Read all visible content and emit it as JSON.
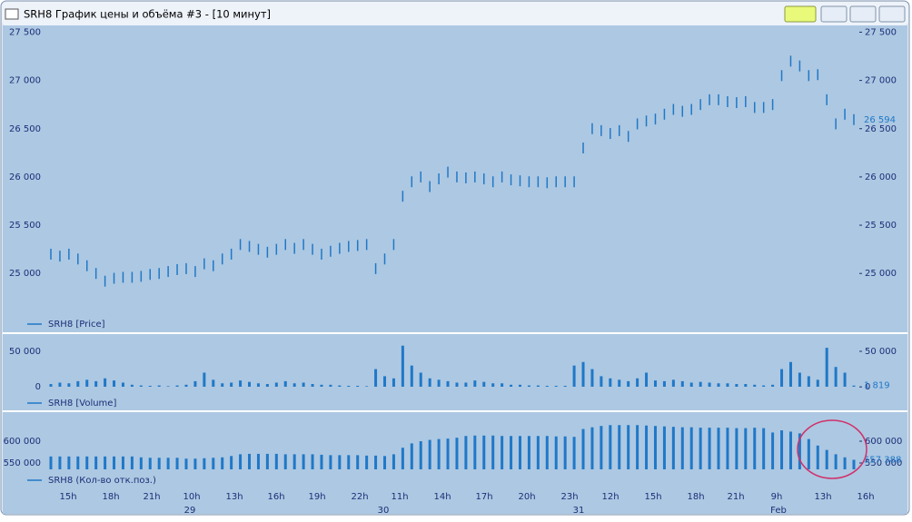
{
  "window": {
    "title": "SRH8 График цены и объёма #3 - [10 минут]"
  },
  "x_axis": {
    "time_labels": [
      "15h",
      "18h",
      "21h",
      "10h",
      "13h",
      "16h",
      "19h",
      "22h",
      "11h",
      "14h",
      "17h",
      "20h",
      "23h",
      "12h",
      "15h",
      "18h",
      "21h",
      "9h",
      "13h",
      "16h"
    ],
    "date_labels": [
      "29",
      "30",
      "31",
      "Feb"
    ]
  },
  "chart_data": [
    {
      "type": "stock",
      "title": "SRH8 [Price]",
      "color": "#1f78c8",
      "ylim": [
        24400,
        27570
      ],
      "yticks": [
        {
          "value": 25000,
          "label": "25 000"
        },
        {
          "value": 25500,
          "label": "25 500"
        },
        {
          "value": 26000,
          "label": "26 000"
        },
        {
          "value": 26500,
          "label": "26 500"
        },
        {
          "value": 27000,
          "label": "27 000"
        },
        {
          "value": 27500,
          "label": "27 500"
        }
      ],
      "values": [
        25200,
        25180,
        25200,
        25150,
        25080,
        25000,
        24920,
        24950,
        24960,
        24960,
        24970,
        24990,
        25000,
        25020,
        25040,
        25050,
        25020,
        25100,
        25080,
        25150,
        25200,
        25300,
        25280,
        25250,
        25220,
        25250,
        25300,
        25260,
        25300,
        25250,
        25200,
        25230,
        25260,
        25280,
        25290,
        25300,
        25050,
        25150,
        25300,
        25800,
        25950,
        26000,
        25900,
        25980,
        26050,
        26000,
        25990,
        26000,
        25980,
        25950,
        26000,
        25970,
        25960,
        25950,
        25950,
        25940,
        25950,
        25950,
        25950,
        26300,
        26500,
        26480,
        26450,
        26480,
        26420,
        26550,
        26580,
        26600,
        26650,
        26700,
        26680,
        26700,
        26750,
        26800,
        26800,
        26780,
        26770,
        26780,
        26720,
        26720,
        26750,
        27050,
        27200,
        27150,
        27050,
        27060,
        26800,
        26550,
        26650,
        26594
      ],
      "last_label": "26 594"
    },
    {
      "type": "bar",
      "title": "SRH8 [Volume]",
      "color": "#1f78c8",
      "ylim": [
        -33000,
        73000
      ],
      "yticks": [
        0,
        {
          "value": 50000,
          "label": "50 000"
        }
      ],
      "values": [
        4000,
        6000,
        5000,
        8000,
        10000,
        8000,
        12000,
        9000,
        6000,
        3000,
        2000,
        1500,
        2000,
        1000,
        2000,
        3000,
        8000,
        20000,
        10000,
        5000,
        6000,
        9000,
        7000,
        5000,
        4000,
        6000,
        8000,
        5000,
        6000,
        4000,
        3000,
        3000,
        2000,
        1500,
        1500,
        1000,
        25000,
        15000,
        12000,
        58000,
        30000,
        20000,
        12000,
        10000,
        8000,
        6000,
        6000,
        9000,
        7000,
        5000,
        5000,
        3000,
        3000,
        2000,
        2000,
        1500,
        1500,
        1500,
        30000,
        35000,
        25000,
        15000,
        12000,
        10000,
        8000,
        12000,
        20000,
        9000,
        8000,
        10000,
        8000,
        6000,
        7000,
        6000,
        5000,
        5000,
        4000,
        4000,
        3000,
        2000,
        3000,
        25000,
        35000,
        20000,
        15000,
        10000,
        55000,
        28000,
        20000,
        1819
      ],
      "last_label": "1 819"
    },
    {
      "type": "bar",
      "title": "SRH8 (Кол-во отк.поз.)",
      "color": "#1f78c8",
      "ylim": [
        491700,
        664600
      ],
      "yticks": [
        {
          "value": 550000,
          "label": "550 000"
        },
        {
          "value": 600000,
          "label": "600 000"
        }
      ],
      "values": [
        565000,
        565000,
        565000,
        565000,
        565000,
        565000,
        565000,
        565000,
        565000,
        565000,
        563000,
        562000,
        562000,
        562000,
        562000,
        560000,
        560000,
        561000,
        562000,
        563000,
        566000,
        570000,
        571000,
        571000,
        571000,
        571000,
        570000,
        570000,
        570000,
        570000,
        569000,
        568000,
        568000,
        568000,
        568000,
        567000,
        567000,
        566000,
        570000,
        585000,
        595000,
        600000,
        603000,
        605000,
        606000,
        608000,
        612000,
        613000,
        613000,
        613000,
        612000,
        612000,
        612000,
        612000,
        612000,
        612000,
        611000,
        611000,
        610000,
        628000,
        632000,
        635000,
        637000,
        637000,
        637000,
        637000,
        636000,
        635000,
        634000,
        633000,
        632000,
        632000,
        631000,
        631000,
        631000,
        631000,
        630000,
        630000,
        631000,
        630000,
        620000,
        625000,
        622000,
        618000,
        605000,
        590000,
        580000,
        570000,
        563000,
        557388
      ],
      "last_label": "557 388"
    }
  ]
}
